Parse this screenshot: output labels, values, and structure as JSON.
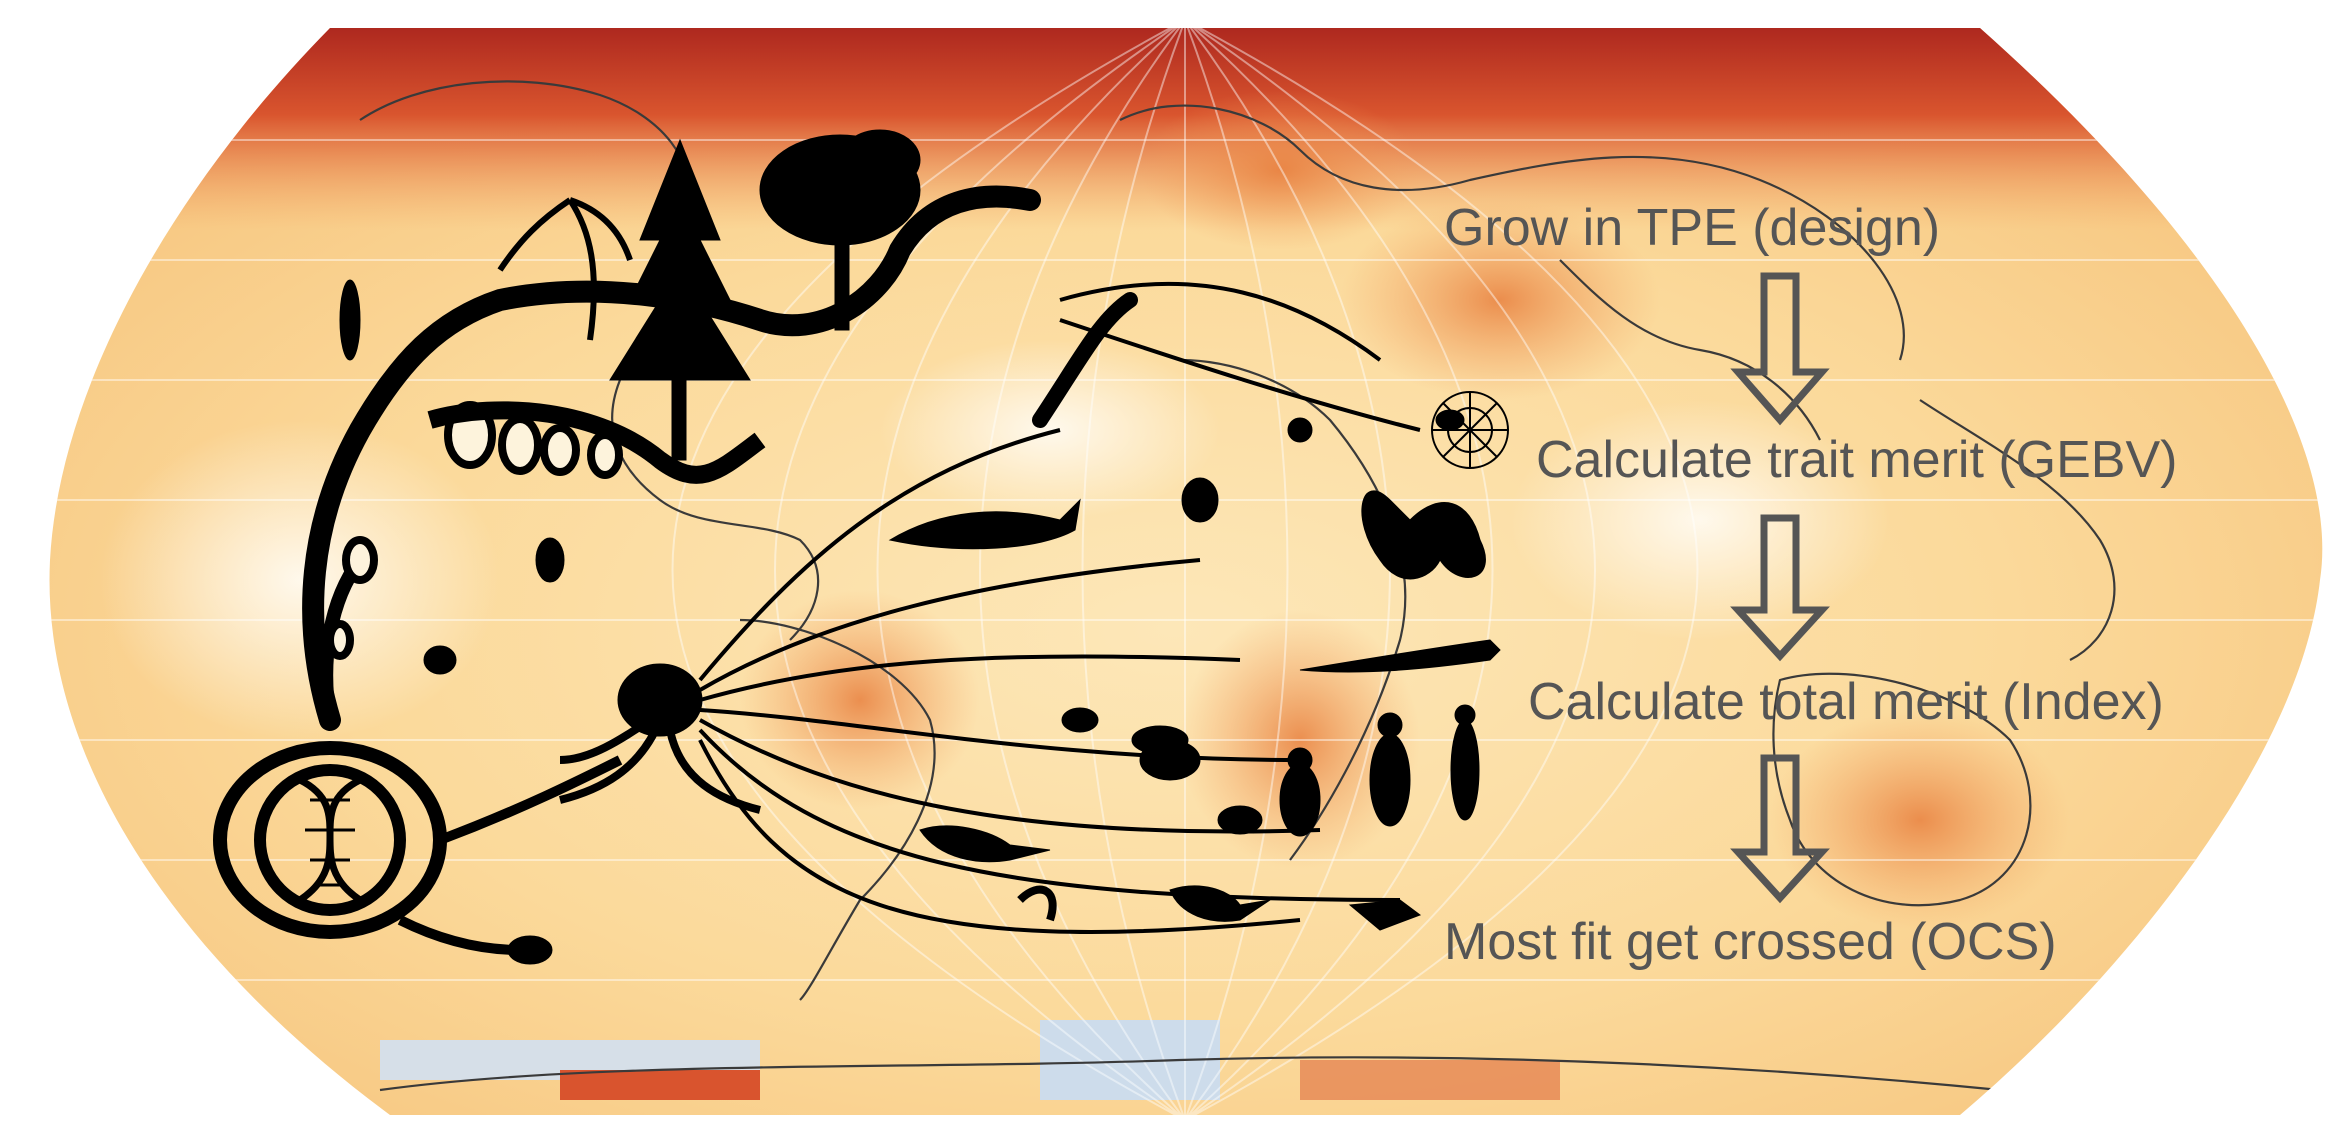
{
  "steps": [
    {
      "label": "Grow in TPE (design)"
    },
    {
      "label": "Calculate trait merit (GEBV)"
    },
    {
      "label": "Calculate total merit (Index)"
    },
    {
      "label": "Most fit get crossed (OCS)"
    }
  ],
  "colors": {
    "text": "#555555",
    "arrow": "#555555",
    "silhouette": "#000000",
    "map_low": "#fff6e0",
    "map_mid": "#f5b870",
    "map_high": "#c0392b",
    "map_cold": "#cfe0f0"
  },
  "icons": [
    "tree-of-life-illustration",
    "world-map",
    "down-arrow-icon"
  ]
}
